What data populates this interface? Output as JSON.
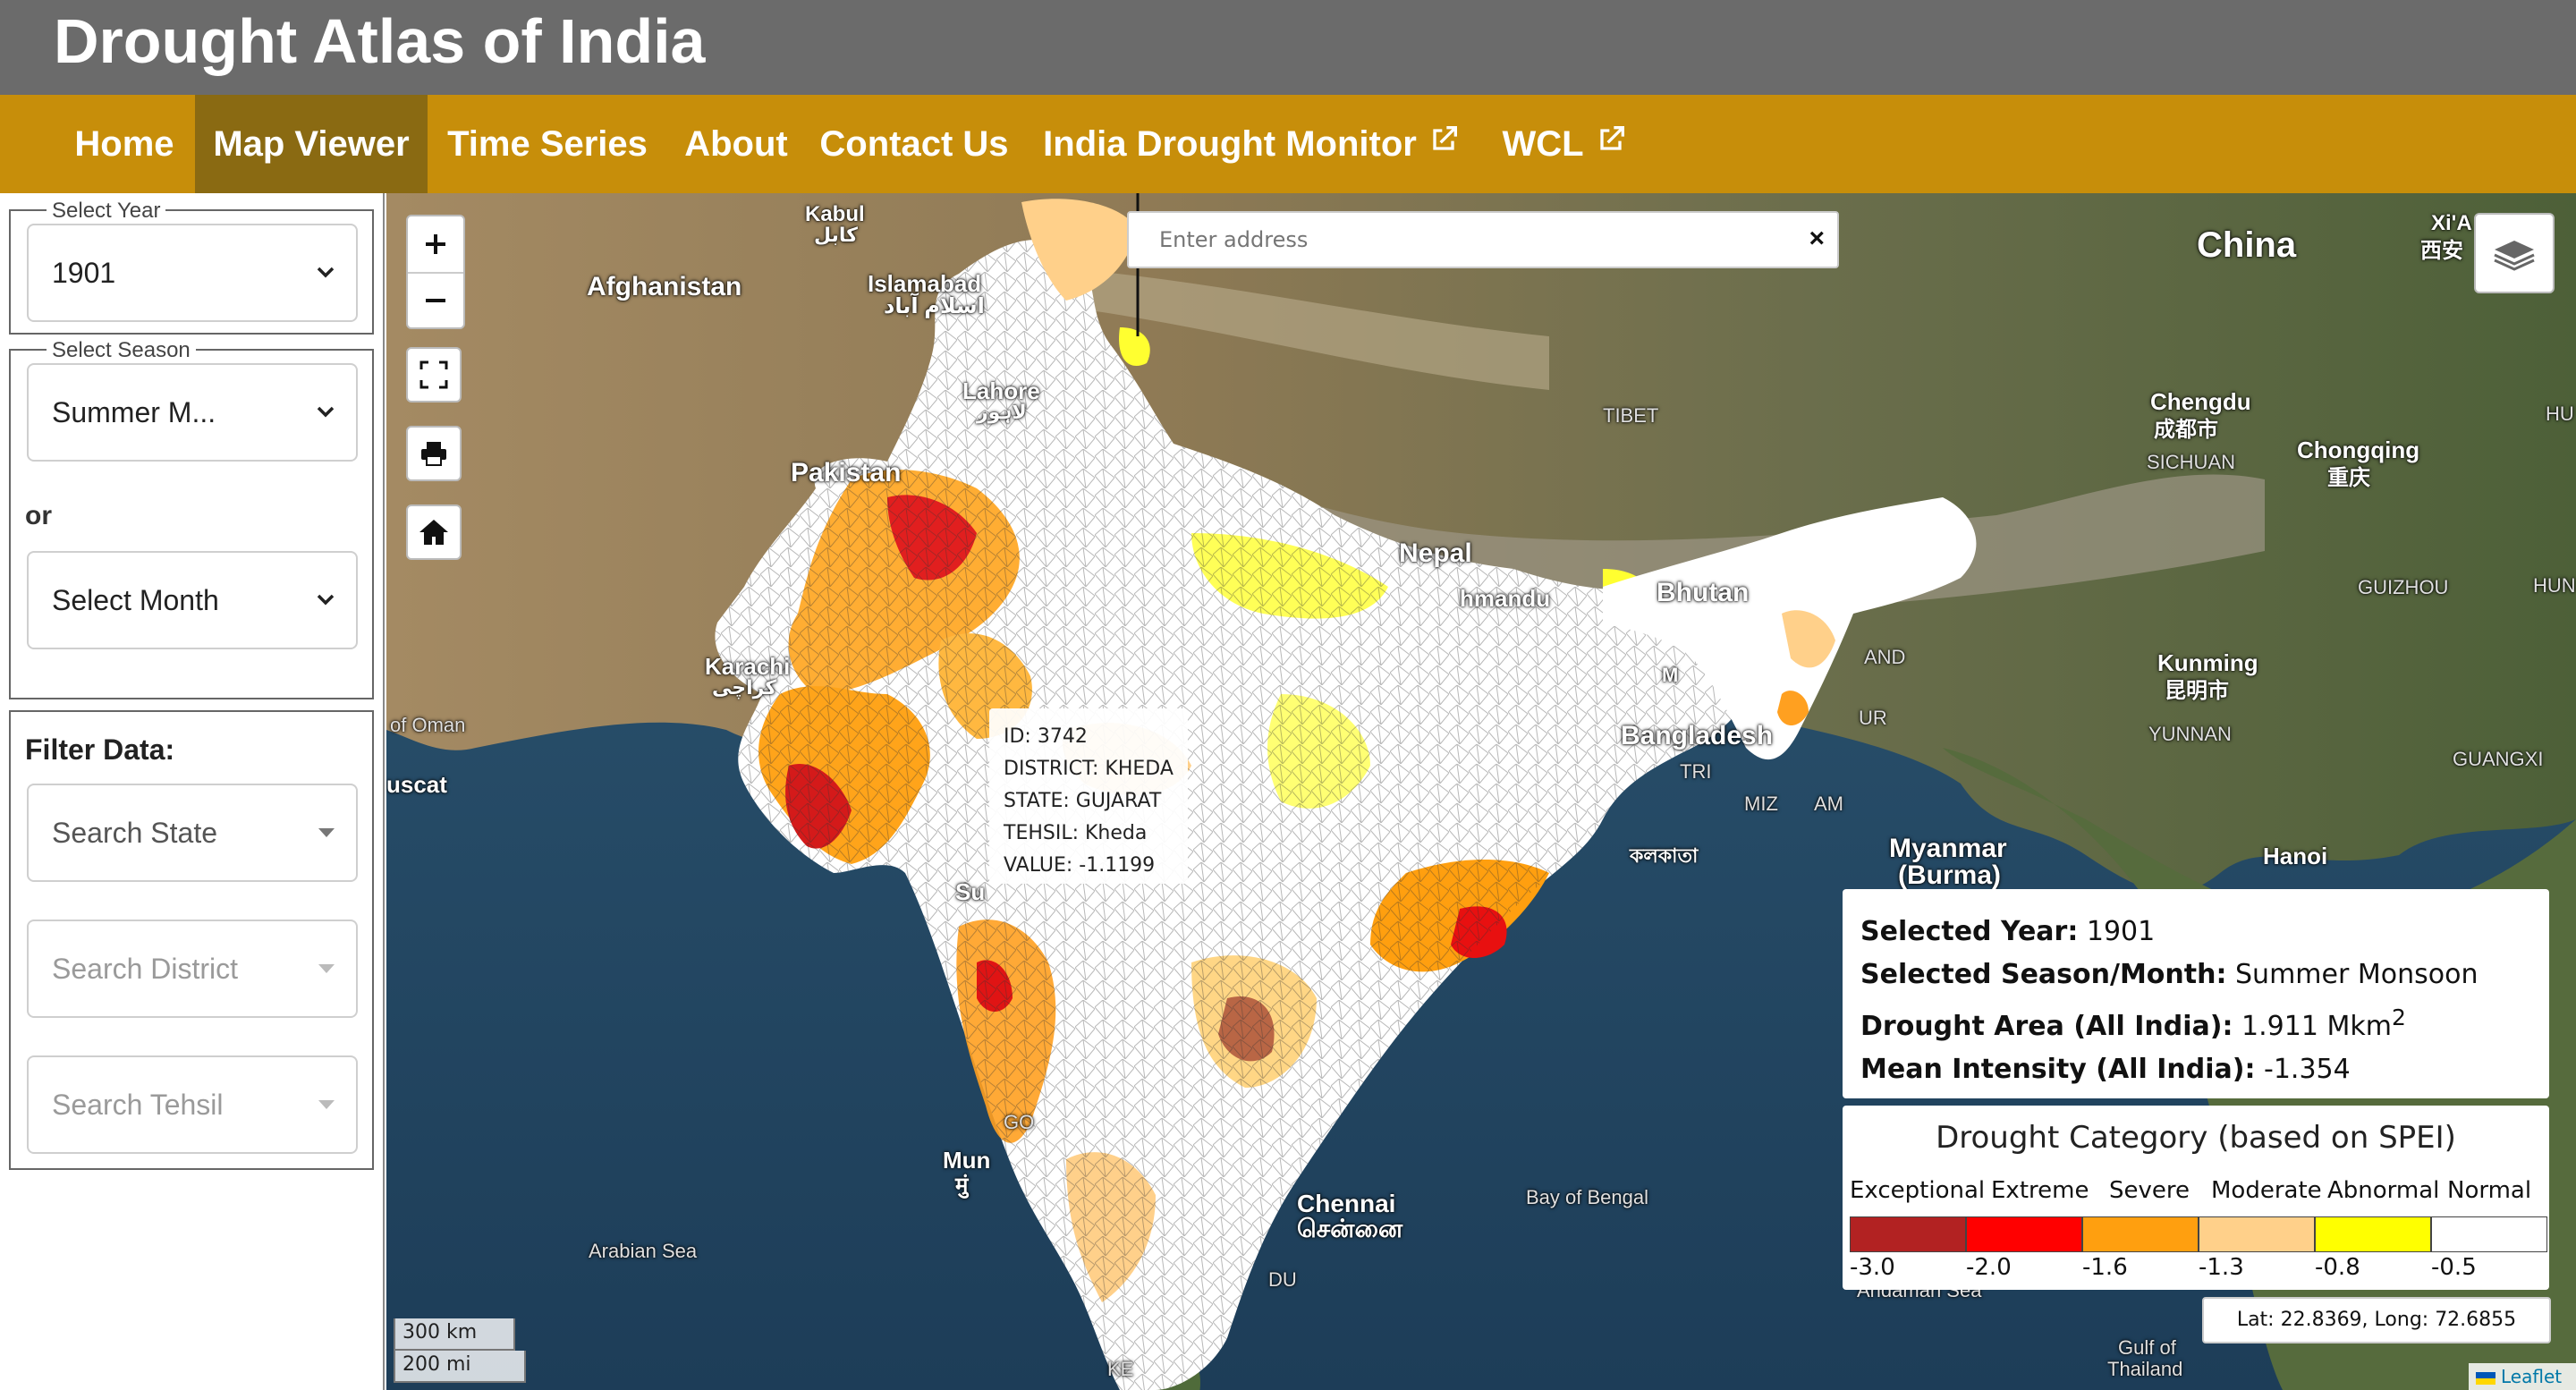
{
  "header": {
    "title": "Drought Atlas of India"
  },
  "nav": {
    "items": [
      {
        "label": "Home",
        "active": false,
        "external": false
      },
      {
        "label": "Map Viewer",
        "active": true,
        "external": false
      },
      {
        "label": "Time Series",
        "active": false,
        "external": false
      },
      {
        "label": "About",
        "active": false,
        "external": false
      },
      {
        "label": "Contact Us",
        "active": false,
        "external": false
      },
      {
        "label": "India Drought Monitor",
        "active": false,
        "external": true
      },
      {
        "label": "WCL",
        "active": false,
        "external": true
      }
    ]
  },
  "sidebar": {
    "year": {
      "legend": "Select Year",
      "value": "1901"
    },
    "season": {
      "legend": "Select Season",
      "value": "Summer M...",
      "or_label": "or",
      "month_value": "Select Month"
    },
    "filter": {
      "title": "Filter Data:",
      "state": "Search State",
      "district": "Search District",
      "tehsil": "Search Tehsil"
    }
  },
  "map": {
    "address_placeholder": "Enter address",
    "clear_glyph": "×",
    "labels": {
      "afghanistan": "Afghanistan",
      "kabul": "Kabul",
      "kabul_local": "کابل",
      "islamabad": "Islamabad",
      "islamabad_local": "اسلام آباد",
      "lahore": "Lahore",
      "lahore_local": "لاہور",
      "pakistan": "Pakistan",
      "karachi": "Karachi",
      "karachi_local": "کراچی",
      "oman": "of Oman",
      "muscat": "uscat",
      "china": "China",
      "xian": "Xi'A",
      "xian_local": "西安",
      "tibet": "TIBET",
      "chengdu": "Chengdu",
      "chengdu_local": "成都市",
      "sichuan": "SICHUAN",
      "chongqing": "Chongqing",
      "chongqing_local": "重庆",
      "hu": "HU",
      "hun": "HUN",
      "guizhou": "GUIZHOU",
      "nepal": "Nepal",
      "kathmandu": "hmandu",
      "bhutan": "Bhutan",
      "bangladesh": "Bangladesh",
      "kunming": "Kunming",
      "kunming_local": "昆明市",
      "yunnan": "YUNNAN",
      "guangxi": "GUANGXI",
      "myanmar": "Myanmar",
      "burma": "(Burma)",
      "hanoi": "Hanoi",
      "chennai": "Chennai",
      "chennai_local": "சென்னை",
      "bay_of_bengal": "Bay of Bengal",
      "arabian_sea": "Arabian Sea",
      "andaman_sea": "Andaman Sea",
      "gulf_thailand": "Gulf of",
      "thailand_word": "Thailand",
      "mumbai": "Mun",
      "mumbai_local": "मुं",
      "surat": "Su",
      "tri": "TRI",
      "miz": "MIZ",
      "am": "AM",
      "and": "AND",
      "ur": "UR",
      "m": "M",
      "kolkata_local": "কলকাতা",
      "go": "GO",
      "du": "DU",
      "ke": "KE"
    }
  },
  "tooltip": {
    "id": "ID: 3742",
    "district": "DISTRICT: KHEDA",
    "state": "STATE: GUJARAT",
    "tehsil": "TEHSIL: Kheda",
    "value": "VALUE: -1.1199"
  },
  "info": {
    "year_label": "Selected Year:",
    "year_value": "1901",
    "season_label": "Selected Season/Month:",
    "season_value": "Summer Monsoon",
    "area_label": "Drought Area (All India):",
    "area_value": "1.911 Mkm",
    "area_sup": "2",
    "intensity_label": "Mean Intensity (All India):",
    "intensity_value": "-1.354"
  },
  "legend": {
    "title": "Drought Category (based on SPEI)",
    "categories": [
      {
        "label": "Exceptional",
        "color": "#b22222",
        "value": "-3.0"
      },
      {
        "label": "Extreme",
        "color": "#ff0000",
        "value": "-2.0"
      },
      {
        "label": "Severe",
        "color": "#ff9f0f",
        "value": "-1.6"
      },
      {
        "label": "Moderate",
        "color": "#ffd08a",
        "value": "-1.3"
      },
      {
        "label": "Abnormal",
        "color": "#ffff00",
        "value": "-0.8"
      },
      {
        "label": "Normal",
        "color": "#ffffff",
        "value": "-0.5"
      }
    ]
  },
  "coords": "Lat: 22.8369, Long: 72.6855",
  "scale": {
    "km": "300 km",
    "mi": "200 mi"
  },
  "attribution": "Leaflet"
}
